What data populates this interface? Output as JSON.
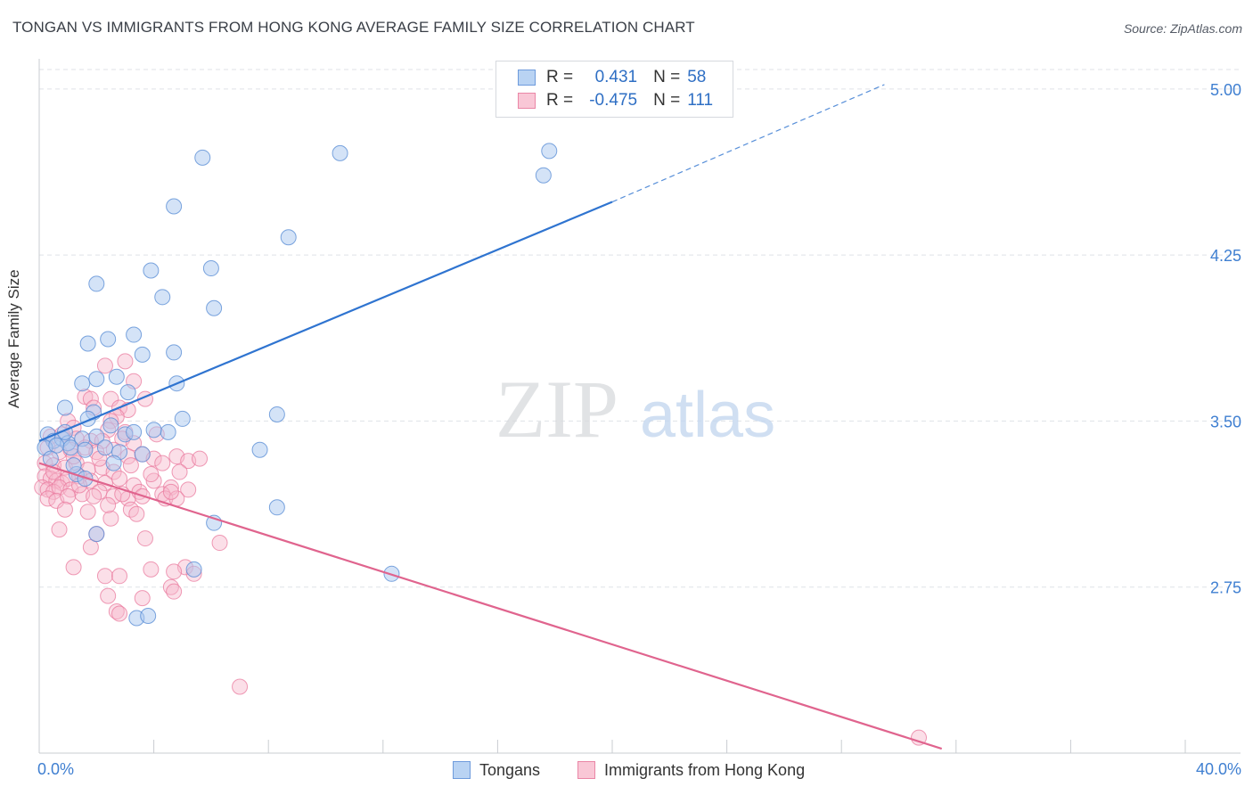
{
  "header": {
    "title": "TONGAN VS IMMIGRANTS FROM HONG KONG AVERAGE FAMILY SIZE CORRELATION CHART",
    "source": "Source: ZipAtlas.com"
  },
  "watermark": {
    "zip": "ZIP",
    "atlas": "atlas"
  },
  "legend": {
    "rows": [
      {
        "r_label": "R =",
        "r_value": "0.431",
        "n_label": "N =",
        "n_value": "58"
      },
      {
        "r_label": "R =",
        "r_value": "-0.475",
        "n_label": "N =",
        "n_value": "111"
      }
    ]
  },
  "bottom_legend": {
    "series1": "Tongans",
    "series2": "Immigrants from Hong Kong"
  },
  "colors": {
    "blue_fill": "#a9c8ef",
    "blue_stroke": "#5b8fd6",
    "blue_line": "#2f74d0",
    "pink_fill": "#f6b8cb",
    "pink_stroke": "#e9799d",
    "pink_line": "#e0648e",
    "tick_text": "#3f7fd1",
    "grid": "#dfe2e7"
  },
  "chart_data": {
    "type": "scatter",
    "title": "TONGAN VS IMMIGRANTS FROM HONG KONG AVERAGE FAMILY SIZE CORRELATION CHART",
    "xlabel": "",
    "ylabel": "Average Family Size",
    "xlim": [
      0,
      40
    ],
    "ylim": [
      2.0,
      5.1
    ],
    "x_tick_labels": [
      "0.0%",
      "40.0%"
    ],
    "y_ticks": [
      2.75,
      3.5,
      4.25,
      5.0
    ],
    "y_tick_labels": [
      "2.75",
      "3.50",
      "4.25",
      "5.00"
    ],
    "grid": true,
    "legend_position": "top-center",
    "series": [
      {
        "name": "Tongans",
        "color": "blue",
        "r": 0.431,
        "n": 58,
        "trend": {
          "x0": 0,
          "y0": 3.41,
          "x1": 20.0,
          "y1": 4.49,
          "dash_to_x": 29.5,
          "dash_to_y": 5.02
        },
        "points": [
          [
            5.7,
            4.69
          ],
          [
            10.5,
            4.71
          ],
          [
            17.8,
            4.72
          ],
          [
            17.6,
            4.61
          ],
          [
            4.7,
            4.47
          ],
          [
            8.7,
            4.33
          ],
          [
            2.0,
            4.12
          ],
          [
            3.9,
            4.18
          ],
          [
            6.0,
            4.19
          ],
          [
            4.3,
            4.06
          ],
          [
            6.1,
            4.01
          ],
          [
            1.7,
            3.85
          ],
          [
            2.4,
            3.87
          ],
          [
            3.3,
            3.89
          ],
          [
            3.6,
            3.8
          ],
          [
            4.7,
            3.81
          ],
          [
            1.5,
            3.67
          ],
          [
            2.0,
            3.69
          ],
          [
            2.7,
            3.7
          ],
          [
            3.1,
            3.63
          ],
          [
            4.8,
            3.67
          ],
          [
            0.9,
            3.56
          ],
          [
            1.9,
            3.54
          ],
          [
            1.7,
            3.51
          ],
          [
            5.0,
            3.51
          ],
          [
            8.3,
            3.53
          ],
          [
            0.3,
            3.44
          ],
          [
            0.5,
            3.41
          ],
          [
            0.8,
            3.42
          ],
          [
            1.0,
            3.4
          ],
          [
            1.5,
            3.42
          ],
          [
            2.0,
            3.43
          ],
          [
            2.5,
            3.48
          ],
          [
            3.0,
            3.44
          ],
          [
            3.3,
            3.45
          ],
          [
            4.5,
            3.45
          ],
          [
            4.0,
            3.46
          ],
          [
            0.2,
            3.38
          ],
          [
            0.6,
            3.39
          ],
          [
            1.1,
            3.38
          ],
          [
            1.6,
            3.37
          ],
          [
            2.3,
            3.38
          ],
          [
            2.8,
            3.36
          ],
          [
            3.6,
            3.35
          ],
          [
            7.7,
            3.37
          ],
          [
            1.3,
            3.26
          ],
          [
            1.6,
            3.24
          ],
          [
            8.3,
            3.11
          ],
          [
            6.1,
            3.04
          ],
          [
            2.0,
            2.99
          ],
          [
            5.4,
            2.83
          ],
          [
            12.3,
            2.81
          ],
          [
            3.4,
            2.61
          ],
          [
            3.8,
            2.62
          ],
          [
            0.4,
            3.33
          ],
          [
            1.2,
            3.3
          ],
          [
            2.6,
            3.31
          ],
          [
            0.9,
            3.45
          ]
        ]
      },
      {
        "name": "Immigrants from Hong Kong",
        "color": "pink",
        "r": -0.475,
        "n": 111,
        "trend": {
          "x0": 0,
          "y0": 3.31,
          "x1": 31.5,
          "y1": 2.02
        },
        "points": [
          [
            3.0,
            3.77
          ],
          [
            2.3,
            3.75
          ],
          [
            3.3,
            3.68
          ],
          [
            3.7,
            3.6
          ],
          [
            2.5,
            3.6
          ],
          [
            1.6,
            3.61
          ],
          [
            1.8,
            3.6
          ],
          [
            2.8,
            3.56
          ],
          [
            3.1,
            3.55
          ],
          [
            1.9,
            3.56
          ],
          [
            2.7,
            3.52
          ],
          [
            2.5,
            3.5
          ],
          [
            1.0,
            3.5
          ],
          [
            1.2,
            3.47
          ],
          [
            2.4,
            3.46
          ],
          [
            3.0,
            3.45
          ],
          [
            4.1,
            3.44
          ],
          [
            0.4,
            3.43
          ],
          [
            0.8,
            3.44
          ],
          [
            1.3,
            3.42
          ],
          [
            1.8,
            3.41
          ],
          [
            2.2,
            3.41
          ],
          [
            2.9,
            3.42
          ],
          [
            3.3,
            3.4
          ],
          [
            0.3,
            3.38
          ],
          [
            0.7,
            3.36
          ],
          [
            1.1,
            3.37
          ],
          [
            1.6,
            3.38
          ],
          [
            2.0,
            3.36
          ],
          [
            2.6,
            3.37
          ],
          [
            3.1,
            3.34
          ],
          [
            3.6,
            3.35
          ],
          [
            4.0,
            3.33
          ],
          [
            4.8,
            3.34
          ],
          [
            5.2,
            3.32
          ],
          [
            5.6,
            3.33
          ],
          [
            0.2,
            3.31
          ],
          [
            0.5,
            3.3
          ],
          [
            0.9,
            3.29
          ],
          [
            1.3,
            3.31
          ],
          [
            1.7,
            3.28
          ],
          [
            2.2,
            3.29
          ],
          [
            2.6,
            3.27
          ],
          [
            3.2,
            3.3
          ],
          [
            4.3,
            3.31
          ],
          [
            4.9,
            3.27
          ],
          [
            0.2,
            3.25
          ],
          [
            0.4,
            3.24
          ],
          [
            0.6,
            3.23
          ],
          [
            0.8,
            3.22
          ],
          [
            1.0,
            3.24
          ],
          [
            1.4,
            3.25
          ],
          [
            1.8,
            3.23
          ],
          [
            2.3,
            3.22
          ],
          [
            2.8,
            3.24
          ],
          [
            3.3,
            3.21
          ],
          [
            4.0,
            3.23
          ],
          [
            4.6,
            3.2
          ],
          [
            0.1,
            3.2
          ],
          [
            0.3,
            3.19
          ],
          [
            0.5,
            3.18
          ],
          [
            0.7,
            3.2
          ],
          [
            1.1,
            3.19
          ],
          [
            1.5,
            3.17
          ],
          [
            2.1,
            3.18
          ],
          [
            2.6,
            3.16
          ],
          [
            3.1,
            3.15
          ],
          [
            3.5,
            3.18
          ],
          [
            4.3,
            3.17
          ],
          [
            5.2,
            3.19
          ],
          [
            0.3,
            3.15
          ],
          [
            0.6,
            3.14
          ],
          [
            1.0,
            3.16
          ],
          [
            1.9,
            3.16
          ],
          [
            2.9,
            3.17
          ],
          [
            3.6,
            3.16
          ],
          [
            4.4,
            3.15
          ],
          [
            3.2,
            3.1
          ],
          [
            3.4,
            3.08
          ],
          [
            1.7,
            3.09
          ],
          [
            2.5,
            3.06
          ],
          [
            4.8,
            3.15
          ],
          [
            4.6,
            3.18
          ],
          [
            0.7,
            3.01
          ],
          [
            2.0,
            2.99
          ],
          [
            3.7,
            2.97
          ],
          [
            6.3,
            2.95
          ],
          [
            1.8,
            2.93
          ],
          [
            1.2,
            2.84
          ],
          [
            3.9,
            2.83
          ],
          [
            5.1,
            2.84
          ],
          [
            4.7,
            2.82
          ],
          [
            2.3,
            2.8
          ],
          [
            2.8,
            2.8
          ],
          [
            5.4,
            2.81
          ],
          [
            4.6,
            2.75
          ],
          [
            4.7,
            2.73
          ],
          [
            2.4,
            2.71
          ],
          [
            3.6,
            2.7
          ],
          [
            2.7,
            2.64
          ],
          [
            2.8,
            2.63
          ],
          [
            7.0,
            2.3
          ],
          [
            30.7,
            2.07
          ],
          [
            0.5,
            3.27
          ],
          [
            1.4,
            3.21
          ],
          [
            2.1,
            3.33
          ],
          [
            3.9,
            3.26
          ],
          [
            1.2,
            3.34
          ],
          [
            2.4,
            3.12
          ],
          [
            0.9,
            3.1
          ]
        ]
      }
    ]
  }
}
